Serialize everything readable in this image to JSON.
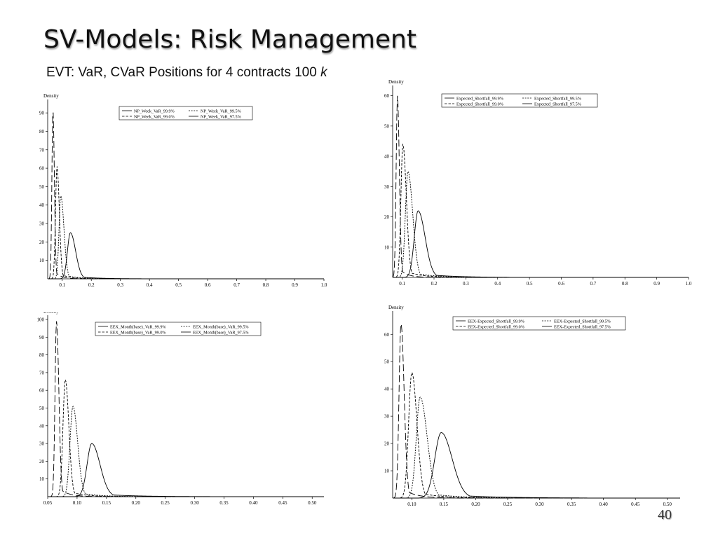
{
  "slide": {
    "title": "SV-Models: Risk Management",
    "subtitle": "EVT: VaR, CVaR Positions for 4 contracts 100",
    "subtitle_unit": "k",
    "page_number": "40"
  },
  "chart_data": [
    {
      "type": "line",
      "ylabel": "Density",
      "xlim": [
        0.05,
        1.0
      ],
      "ylim": [
        0,
        95
      ],
      "xticks": [
        "0.1",
        "0.2",
        "0.3",
        "0.4",
        "0.5",
        "0.6",
        "0.7",
        "0.8",
        "0.9",
        "1.0"
      ],
      "xtick_values": [
        0.1,
        0.2,
        0.3,
        0.4,
        0.5,
        0.6,
        0.7,
        0.8,
        0.9,
        1.0
      ],
      "yticks": [
        "10",
        "20",
        "30",
        "40",
        "50",
        "60",
        "70",
        "80",
        "90"
      ],
      "ytick_values": [
        10,
        20,
        30,
        40,
        50,
        60,
        70,
        80,
        90
      ],
      "legend": "top-right",
      "series": [
        {
          "name": "NP_Week_VaR_99.9%",
          "style": "solid",
          "peak_x": 0.128,
          "peak_y": 25,
          "left_width": 0.01,
          "right_width": 0.018
        },
        {
          "name": "NP_Week_VaR_99.5%",
          "style": "dotted",
          "peak_x": 0.095,
          "peak_y": 45,
          "left_width": 0.006,
          "right_width": 0.011
        },
        {
          "name": "NP_Week_VaR_99.0%",
          "style": "dashed",
          "peak_x": 0.082,
          "peak_y": 61,
          "left_width": 0.005,
          "right_width": 0.008
        },
        {
          "name": "NP_Week_VaR_97.5%",
          "style": "longdash",
          "peak_x": 0.068,
          "peak_y": 92,
          "left_width": 0.0035,
          "right_width": 0.005
        }
      ]
    },
    {
      "type": "line",
      "ylabel": "Density",
      "xlim": [
        0.07,
        1.0
      ],
      "ylim": [
        0,
        62
      ],
      "xticks": [
        "0.1",
        "0.2",
        "0.3",
        "0.4",
        "0.5",
        "0.6",
        "0.7",
        "0.8",
        "0.9",
        "1.0"
      ],
      "xtick_values": [
        0.1,
        0.2,
        0.3,
        0.4,
        0.5,
        0.6,
        0.7,
        0.8,
        0.9,
        1.0
      ],
      "yticks": [
        "10",
        "20",
        "30",
        "40",
        "50",
        "60"
      ],
      "ytick_values": [
        10,
        20,
        30,
        40,
        50,
        60
      ],
      "legend": "top-right",
      "series": [
        {
          "name": "Expected_Shortfall_99.9%",
          "style": "solid",
          "peak_x": 0.15,
          "peak_y": 22,
          "left_width": 0.012,
          "right_width": 0.022
        },
        {
          "name": "Expected_Shortfall_99.5%",
          "style": "dotted",
          "peak_x": 0.118,
          "peak_y": 35,
          "left_width": 0.008,
          "right_width": 0.015
        },
        {
          "name": "Expected_Shortfall_99.0%",
          "style": "dashed",
          "peak_x": 0.102,
          "peak_y": 44,
          "left_width": 0.006,
          "right_width": 0.011
        },
        {
          "name": "Expected_Shortfall_97.5%",
          "style": "longdash",
          "peak_x": 0.085,
          "peak_y": 60,
          "left_width": 0.004,
          "right_width": 0.006
        }
      ]
    },
    {
      "type": "line",
      "ylabel": "Density",
      "xlim": [
        0.05,
        0.52
      ],
      "ylim": [
        0,
        100
      ],
      "xticks": [
        "0.05",
        "0.10",
        "0.15",
        "0.20",
        "0.25",
        "0.30",
        "0.35",
        "0.40",
        "0.45",
        "0.50"
      ],
      "xtick_values": [
        0.05,
        0.1,
        0.15,
        0.2,
        0.25,
        0.3,
        0.35,
        0.4,
        0.45,
        0.5
      ],
      "yticks": [
        "10",
        "20",
        "30",
        "40",
        "50",
        "60",
        "70",
        "80",
        "90",
        "100"
      ],
      "ytick_values": [
        10,
        20,
        30,
        40,
        50,
        60,
        70,
        80,
        90,
        100
      ],
      "legend": "top-right",
      "series": [
        {
          "name": "EEX_Month(base)_VaR_99.9%",
          "style": "solid",
          "peak_x": 0.125,
          "peak_y": 30,
          "left_width": 0.008,
          "right_width": 0.014
        },
        {
          "name": "EEX_Month(base)_VaR_99.5%",
          "style": "dotted",
          "peak_x": 0.093,
          "peak_y": 51,
          "left_width": 0.005,
          "right_width": 0.008
        },
        {
          "name": "EEX_Month(base)_VaR_99.0%",
          "style": "dashed",
          "peak_x": 0.08,
          "peak_y": 66,
          "left_width": 0.004,
          "right_width": 0.006
        },
        {
          "name": "EEX_Month(base)_VaR_97.5%",
          "style": "longdash",
          "peak_x": 0.065,
          "peak_y": 99,
          "left_width": 0.0025,
          "right_width": 0.004
        }
      ]
    },
    {
      "type": "line",
      "ylabel": "Density",
      "xlim": [
        0.07,
        0.52
      ],
      "ylim": [
        0,
        67
      ],
      "xticks": [
        "0.10",
        "0.15",
        "0.20",
        "0.25",
        "0.30",
        "0.35",
        "0.40",
        "0.45",
        "0.50"
      ],
      "xtick_values": [
        0.1,
        0.15,
        0.2,
        0.25,
        0.3,
        0.35,
        0.4,
        0.45,
        0.5
      ],
      "yticks": [
        "10",
        "20",
        "30",
        "40",
        "50",
        "60"
      ],
      "ytick_values": [
        10,
        20,
        30,
        40,
        50,
        60
      ],
      "legend": "top-right",
      "series": [
        {
          "name": "EEX-Expected_Shortfall_99.9%",
          "style": "solid",
          "peak_x": 0.146,
          "peak_y": 24,
          "left_width": 0.01,
          "right_width": 0.017
        },
        {
          "name": "EEX-Expected_Shortfall_99.5%",
          "style": "dotted",
          "peak_x": 0.113,
          "peak_y": 37,
          "left_width": 0.006,
          "right_width": 0.011
        },
        {
          "name": "EEX-Expected_Shortfall_99.0%",
          "style": "dashed",
          "peak_x": 0.1,
          "peak_y": 46,
          "left_width": 0.005,
          "right_width": 0.008
        },
        {
          "name": "EEX-Expected_Shortfall_97.5%",
          "style": "longdash",
          "peak_x": 0.083,
          "peak_y": 64,
          "left_width": 0.003,
          "right_width": 0.005
        }
      ]
    }
  ]
}
